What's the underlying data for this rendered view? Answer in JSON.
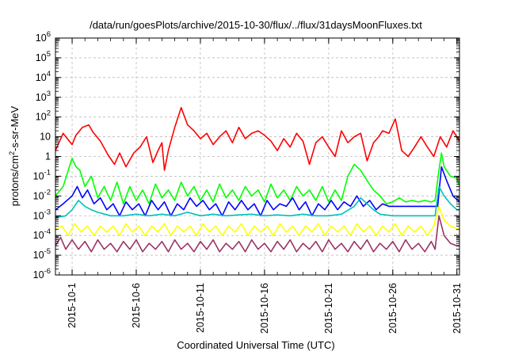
{
  "chart_data": {
    "type": "line",
    "title": "/data/run/goesPlots/archive/2015-10-30/flux/../flux/31daysMoonFluxes.txt",
    "xlabel": "Coordinated Universal Time (UTC)",
    "ylabel": {
      "prefix": "protons/cm",
      "superscript": "2",
      "suffix": "-s-sr-MeV"
    },
    "yscale": "log",
    "ylim": [
      1e-06,
      1000000.0
    ],
    "xlim": [
      -1.3,
      30.2
    ],
    "x_units": "days since 2015-10-01 00:00 UTC",
    "grid": "dashed",
    "legend": "none",
    "x_ticks": [
      {
        "value": 0,
        "label": "2015-10-1"
      },
      {
        "value": 5,
        "label": "2015-10-6"
      },
      {
        "value": 10,
        "label": "2015-10-11"
      },
      {
        "value": 15,
        "label": "2015-10-16"
      },
      {
        "value": 20,
        "label": "2015-10-21"
      },
      {
        "value": 25,
        "label": "2015-10-26"
      },
      {
        "value": 30,
        "label": "2015-10-31"
      }
    ],
    "y_ticks": [
      {
        "value": 1e-06,
        "base": "10",
        "exp": "-6"
      },
      {
        "value": 1e-05,
        "base": "10",
        "exp": "-5"
      },
      {
        "value": 0.0001,
        "base": "10",
        "exp": "-4"
      },
      {
        "value": 0.001,
        "base": "10",
        "exp": "-3"
      },
      {
        "value": 0.01,
        "base": "10",
        "exp": "-2"
      },
      {
        "value": 0.1,
        "base": "10",
        "exp": "-1"
      },
      {
        "value": 1,
        "base": "1",
        "exp": ""
      },
      {
        "value": 10,
        "base": "10",
        "exp": ""
      },
      {
        "value": 100,
        "base": "10",
        "exp": "2"
      },
      {
        "value": 1000,
        "base": "10",
        "exp": "3"
      },
      {
        "value": 10000,
        "base": "10",
        "exp": "4"
      },
      {
        "value": 100000,
        "base": "10",
        "exp": "5"
      },
      {
        "value": 1000000,
        "base": "10",
        "exp": "6"
      }
    ],
    "series": [
      {
        "color": "#ff0000",
        "x": [
          -1.3,
          -0.7,
          0,
          0.3,
          0.8,
          1.3,
          1.6,
          2.2,
          2.8,
          3.3,
          3.7,
          4.2,
          4.8,
          5.3,
          5.8,
          6.3,
          6.7,
          7.0,
          7.2,
          7.5,
          8.0,
          8.5,
          9.0,
          9.5,
          10.0,
          10.5,
          11.0,
          11.5,
          12.0,
          12.5,
          13.0,
          13.5,
          14.0,
          14.5,
          15.0,
          15.5,
          16.0,
          16.5,
          17.0,
          17.5,
          18.0,
          18.5,
          19.0,
          19.5,
          20.0,
          20.5,
          21.0,
          21.5,
          22.0,
          22.5,
          23.0,
          23.5,
          23.9,
          24.2,
          24.7,
          25.2,
          25.7,
          26.2,
          26.7,
          27.2,
          27.7,
          28.2,
          28.7,
          29.2,
          29.7,
          30.2
        ],
        "y": [
          2,
          15,
          4,
          12,
          30,
          40,
          18,
          6,
          1.2,
          0.4,
          1.5,
          0.3,
          1.5,
          3,
          10,
          0.5,
          2,
          5,
          0.2,
          2,
          30,
          300,
          40,
          20,
          8,
          15,
          4,
          10,
          20,
          5,
          30,
          8,
          15,
          20,
          12,
          6,
          2,
          8,
          3,
          15,
          6,
          0.4,
          5,
          10,
          3,
          1,
          20,
          5,
          10,
          15,
          0.6,
          5,
          10,
          20,
          15,
          80,
          2,
          1,
          3,
          10,
          3,
          1,
          10,
          3,
          20,
          6
        ]
      },
      {
        "color": "#00ff00",
        "x": [
          -1.3,
          -0.7,
          -0.3,
          0,
          0.3,
          0.6,
          1.0,
          1.5,
          2.0,
          2.5,
          3.0,
          3.5,
          4.0,
          4.5,
          5.0,
          5.5,
          6.0,
          6.5,
          7.0,
          7.5,
          8.0,
          8.5,
          9.0,
          9.5,
          10.0,
          10.5,
          11.0,
          11.5,
          12.0,
          12.5,
          13.0,
          13.5,
          14.0,
          14.5,
          15.0,
          15.5,
          16.0,
          16.5,
          17.0,
          17.5,
          18.0,
          18.5,
          19.0,
          19.5,
          20.0,
          20.5,
          21.0,
          21.5,
          22.0,
          22.5,
          23.0,
          23.5,
          24.0,
          24.5,
          25.0,
          25.5,
          26.0,
          26.5,
          27.0,
          27.5,
          28.0,
          28.3,
          28.6,
          28.8,
          29.0,
          29.5,
          30.0,
          30.2
        ],
        "y": [
          0.01,
          0.03,
          0.2,
          0.8,
          0.3,
          0.2,
          0.03,
          0.1,
          0.008,
          0.03,
          0.006,
          0.05,
          0.004,
          0.03,
          0.006,
          0.02,
          0.004,
          0.04,
          0.008,
          0.02,
          0.006,
          0.05,
          0.01,
          0.03,
          0.006,
          0.02,
          0.005,
          0.04,
          0.008,
          0.02,
          0.006,
          0.03,
          0.01,
          0.02,
          0.005,
          0.04,
          0.008,
          0.02,
          0.006,
          0.03,
          0.01,
          0.02,
          0.006,
          0.03,
          0.005,
          0.02,
          0.006,
          0.1,
          0.4,
          0.2,
          0.06,
          0.02,
          0.01,
          0.004,
          0.005,
          0.008,
          0.005,
          0.006,
          0.005,
          0.006,
          0.005,
          0.006,
          0.2,
          1.5,
          0.3,
          0.1,
          0.08,
          0.03
        ]
      },
      {
        "color": "#0000ff",
        "x": [
          -1.3,
          -0.7,
          0,
          0.4,
          0.8,
          1.2,
          1.7,
          2.2,
          2.7,
          3.2,
          3.7,
          4.2,
          4.7,
          5.2,
          5.7,
          6.2,
          6.7,
          7.2,
          7.7,
          8.2,
          8.7,
          9.2,
          9.7,
          10.2,
          10.7,
          11.2,
          11.7,
          12.2,
          12.7,
          13.2,
          13.7,
          14.2,
          14.7,
          15.2,
          15.7,
          16.2,
          16.7,
          17.2,
          17.7,
          18.2,
          18.7,
          19.2,
          19.7,
          20.2,
          20.7,
          21.2,
          21.7,
          22.2,
          22.7,
          23.2,
          23.7,
          24.2,
          24.7,
          25.2,
          25.7,
          26.2,
          26.7,
          27.2,
          27.7,
          28.2,
          28.5,
          28.8,
          29.2,
          29.7,
          30.2
        ],
        "y": [
          0.002,
          0.004,
          0.01,
          0.03,
          0.008,
          0.02,
          0.004,
          0.008,
          0.002,
          0.004,
          0.001,
          0.005,
          0.002,
          0.004,
          0.001,
          0.006,
          0.002,
          0.005,
          0.001,
          0.004,
          0.002,
          0.008,
          0.003,
          0.006,
          0.002,
          0.004,
          0.001,
          0.005,
          0.002,
          0.006,
          0.002,
          0.004,
          0.001,
          0.006,
          0.002,
          0.004,
          0.003,
          0.008,
          0.002,
          0.005,
          0.001,
          0.004,
          0.002,
          0.006,
          0.002,
          0.005,
          0.003,
          0.01,
          0.003,
          0.006,
          0.002,
          0.004,
          0.003,
          0.003,
          0.003,
          0.003,
          0.003,
          0.003,
          0.003,
          0.003,
          0.003,
          0.3,
          0.06,
          0.01,
          0.005
        ]
      },
      {
        "color": "#00bfbf",
        "x": [
          -1.3,
          -0.5,
          0,
          0.5,
          1.0,
          1.5,
          2.0,
          3.0,
          4.0,
          5.0,
          6.0,
          7.0,
          8.0,
          9.0,
          10.0,
          11.0,
          12.0,
          13.0,
          14.0,
          15.0,
          16.0,
          17.0,
          18.0,
          19.0,
          20.0,
          21.0,
          22.0,
          22.5,
          23.0,
          23.5,
          24.0,
          25.0,
          26.0,
          27.0,
          28.0,
          28.3,
          28.6,
          29.0,
          29.5,
          30.0,
          30.2
        ],
        "y": [
          0.0008,
          0.001,
          0.002,
          0.006,
          0.003,
          0.002,
          0.0015,
          0.001,
          0.001,
          0.0012,
          0.001,
          0.0012,
          0.001,
          0.0015,
          0.001,
          0.0012,
          0.001,
          0.0011,
          0.0012,
          0.001,
          0.0011,
          0.001,
          0.0012,
          0.001,
          0.001,
          0.0012,
          0.003,
          0.008,
          0.004,
          0.002,
          0.0012,
          0.001,
          0.001,
          0.001,
          0.001,
          0.001,
          0.03,
          0.01,
          0.004,
          0.002,
          0.002
        ]
      },
      {
        "color": "#ffff00",
        "x": [
          -1.3,
          -0.8,
          -0.3,
          0.2,
          0.7,
          1.2,
          1.7,
          2.2,
          2.7,
          3.2,
          3.7,
          4.2,
          4.7,
          5.2,
          5.7,
          6.2,
          6.7,
          7.2,
          7.7,
          8.2,
          8.7,
          9.2,
          9.7,
          10.2,
          10.7,
          11.2,
          11.7,
          12.2,
          12.7,
          13.2,
          13.7,
          14.2,
          14.7,
          15.2,
          15.7,
          16.2,
          16.7,
          17.2,
          17.7,
          18.2,
          18.7,
          19.2,
          19.7,
          20.2,
          20.7,
          21.2,
          21.7,
          22.2,
          22.7,
          23.2,
          23.7,
          24.2,
          24.7,
          25.2,
          25.7,
          26.2,
          26.7,
          27.2,
          27.7,
          28.2,
          28.6,
          29.0,
          29.5,
          30.2
        ],
        "y": [
          0.0002,
          0.0003,
          0.0001,
          0.0004,
          0.00015,
          0.0003,
          0.0001,
          0.0003,
          0.00015,
          0.0003,
          0.0001,
          0.0004,
          0.00015,
          0.0003,
          0.0001,
          0.0003,
          0.00015,
          0.0004,
          0.0001,
          0.0003,
          0.00015,
          0.0003,
          0.0001,
          0.0004,
          0.00015,
          0.0003,
          0.0001,
          0.0003,
          0.00015,
          0.0004,
          0.0001,
          0.0003,
          0.00015,
          0.0003,
          0.0001,
          0.0004,
          0.00015,
          0.0003,
          0.0001,
          0.0003,
          0.00015,
          0.0004,
          0.0001,
          0.0003,
          0.00015,
          0.0003,
          0.0001,
          0.0004,
          0.00015,
          0.0003,
          0.0001,
          0.0003,
          0.00015,
          0.0004,
          0.0001,
          0.0003,
          0.00015,
          0.0003,
          0.0001,
          0.0003,
          0.003,
          0.0006,
          0.0003,
          0.0002
        ]
      },
      {
        "color": "#993366",
        "x": [
          -1.3,
          -0.9,
          -0.5,
          0,
          0.5,
          1.0,
          1.5,
          2.0,
          2.5,
          3.0,
          3.5,
          4.0,
          4.5,
          5.0,
          5.5,
          6.0,
          6.5,
          7.0,
          7.5,
          8.0,
          8.5,
          9.0,
          9.5,
          10.0,
          10.5,
          11.0,
          11.5,
          12.0,
          12.5,
          13.0,
          13.5,
          14.0,
          14.5,
          15.0,
          15.5,
          16.0,
          16.5,
          17.0,
          17.5,
          18.0,
          18.5,
          19.0,
          19.5,
          20.0,
          20.5,
          21.0,
          21.5,
          22.0,
          22.5,
          23.0,
          23.5,
          24.0,
          24.5,
          25.0,
          25.5,
          26.0,
          26.5,
          27.0,
          27.5,
          28.0,
          28.3,
          28.6,
          29.0,
          29.5,
          30.0,
          30.2
        ],
        "y": [
          3e-05,
          8e-05,
          2e-05,
          6e-05,
          2e-05,
          5e-05,
          1.5e-05,
          6e-05,
          2e-05,
          4e-05,
          1.5e-05,
          5e-05,
          2e-05,
          6e-05,
          1.5e-05,
          4e-05,
          2e-05,
          5e-05,
          1.5e-05,
          6e-05,
          2e-05,
          4e-05,
          1.5e-05,
          5e-05,
          2e-05,
          6e-05,
          1.5e-05,
          4e-05,
          2e-05,
          5e-05,
          1.5e-05,
          6e-05,
          2e-05,
          4e-05,
          1.5e-05,
          5e-05,
          2e-05,
          6e-05,
          1.5e-05,
          4e-05,
          2e-05,
          5e-05,
          1.5e-05,
          6e-05,
          2e-05,
          4e-05,
          1.5e-05,
          5e-05,
          2e-05,
          6e-05,
          1.5e-05,
          4e-05,
          2e-05,
          5e-05,
          1.5e-05,
          6e-05,
          2e-05,
          4e-05,
          1.5e-05,
          5e-05,
          2e-05,
          0.001,
          0.0001,
          4e-05,
          3e-05,
          3e-05
        ]
      }
    ]
  }
}
